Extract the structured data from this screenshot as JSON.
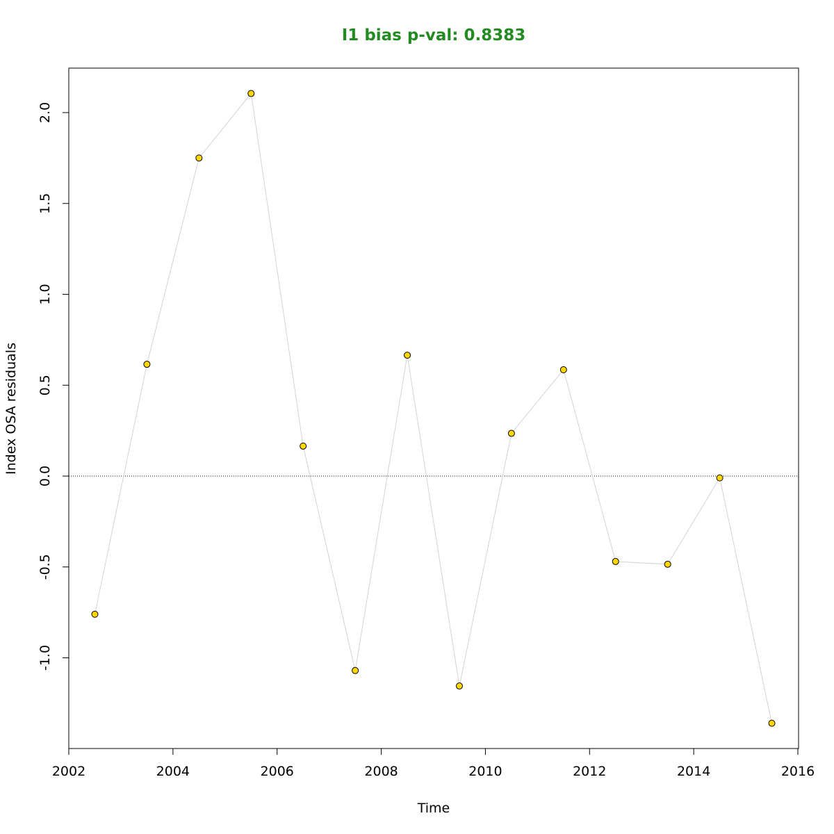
{
  "chart_data": {
    "type": "scatter",
    "title": "I1 bias p-val: 0.8383",
    "xlabel": "Time",
    "ylabel": "Index OSA residuals",
    "xlim": [
      2002,
      2016
    ],
    "ylim": [
      -1.4,
      2.2
    ],
    "x_ticks": [
      2002,
      2004,
      2006,
      2008,
      2010,
      2012,
      2014,
      2016
    ],
    "y_ticks": [
      -1.0,
      -0.5,
      0.0,
      0.5,
      1.0,
      1.5,
      2.0
    ],
    "y_tick_labels": [
      "-1.0",
      "-0.5",
      "0.0",
      "0.5",
      "1.0",
      "1.5",
      "2.0"
    ],
    "x_tick_labels": [
      "2002",
      "2004",
      "2006",
      "2008",
      "2010",
      "2012",
      "2014",
      "2016"
    ],
    "reference_line_y": 0.0,
    "grid": false,
    "connected": true,
    "series": [
      {
        "x": [
          2002.5,
          2003.5,
          2004.5,
          2005.5,
          2006.5,
          2007.5,
          2008.5,
          2009.5,
          2010.5,
          2011.5,
          2012.5,
          2013.5,
          2014.5,
          2015.5
        ],
        "y": [
          -0.76,
          0.615,
          1.75,
          2.105,
          0.165,
          -1.07,
          0.665,
          -1.155,
          0.235,
          0.585,
          -0.47,
          -0.485,
          -0.01,
          -1.36
        ]
      }
    ],
    "colors": {
      "title": "#228B22",
      "point_fill": "#FFD700",
      "point_stroke": "#000000",
      "line": "#D3D3D3",
      "reference_line": "#000000"
    }
  }
}
